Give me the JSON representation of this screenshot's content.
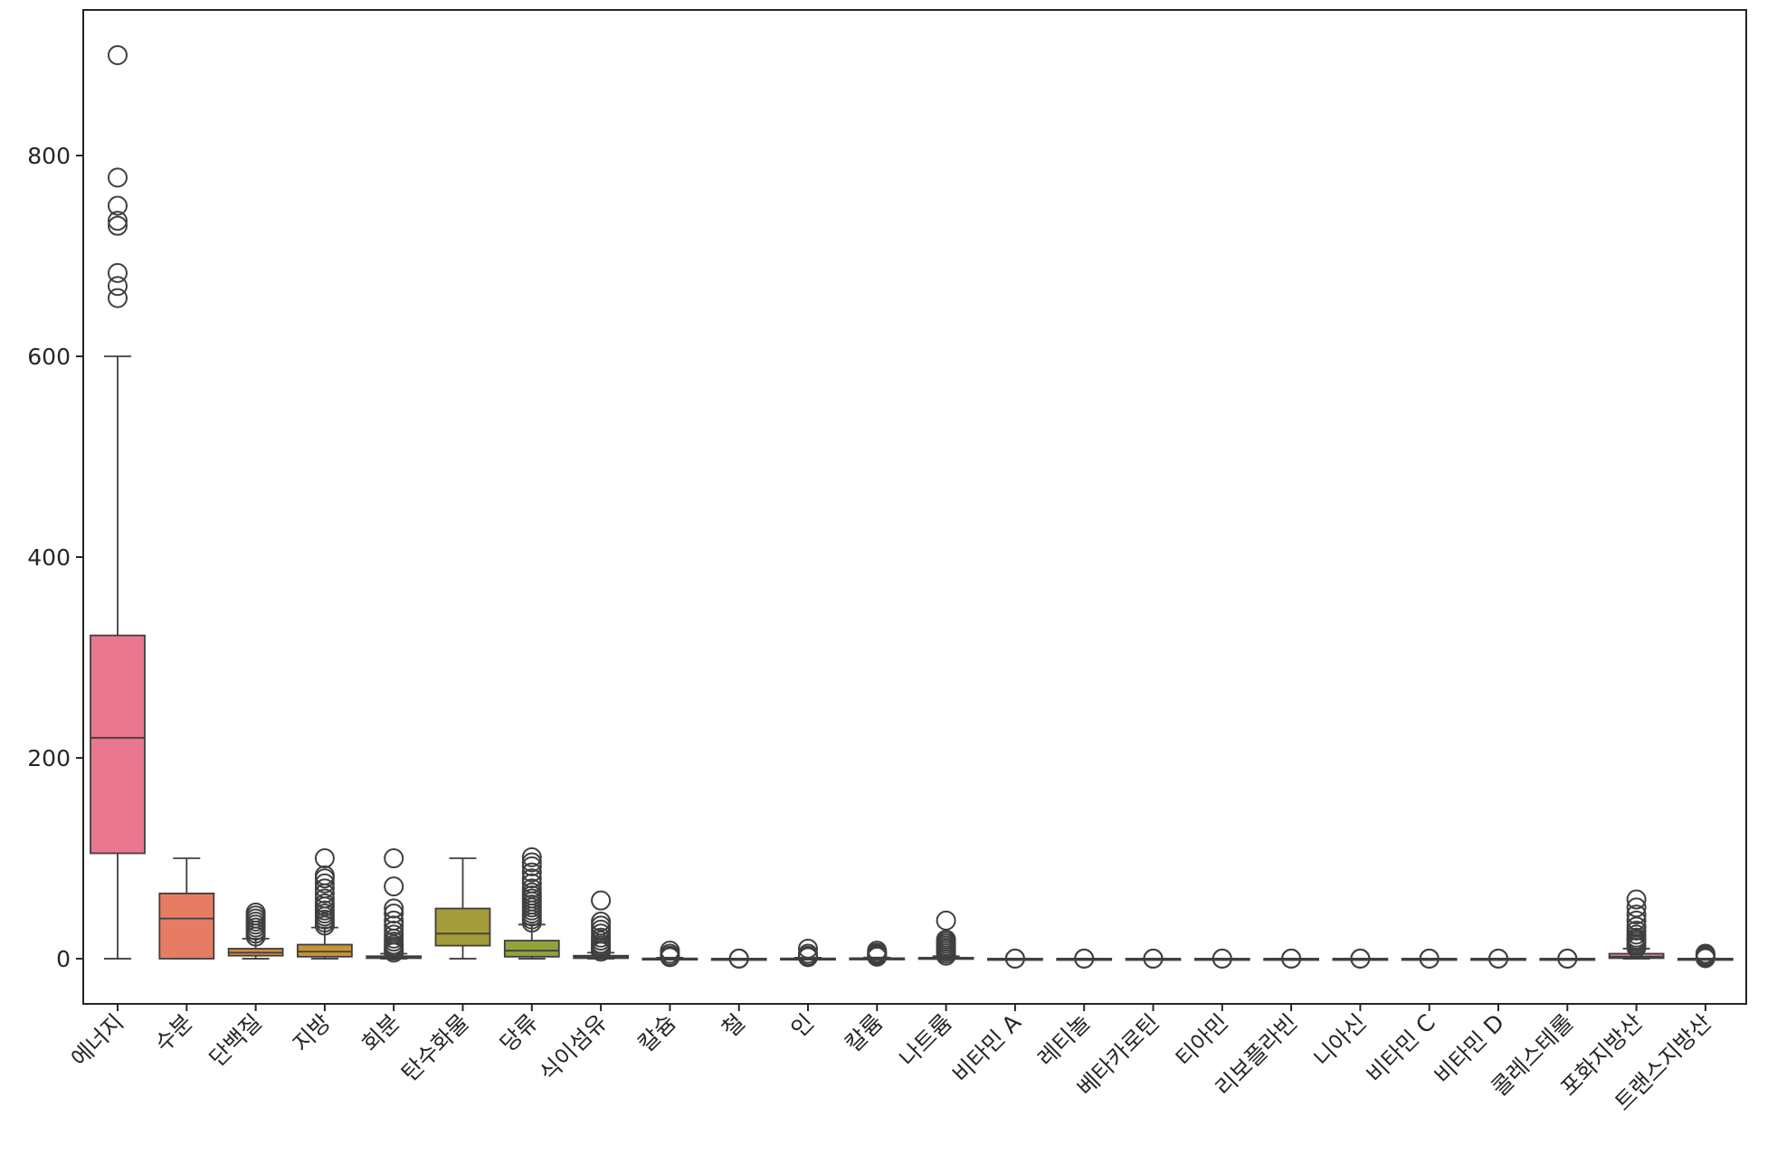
{
  "chart_data": {
    "type": "boxplot",
    "title": "",
    "xlabel": "",
    "ylabel": "",
    "ylim": [
      -45,
      945
    ],
    "yticks": [
      0,
      200,
      400,
      600,
      800
    ],
    "grid": false,
    "categories": [
      "에너지",
      "수분",
      "단백질",
      "지방",
      "회분",
      "탄수화물",
      "당류",
      "식이섬유",
      "칼슘",
      "철",
      "인",
      "칼륨",
      "나트륨",
      "비타민 A",
      "레티놀",
      "베타카로틴",
      "티아민",
      "리보플라빈",
      "니아신",
      "비타민 C",
      "비타민 D",
      "콜레스테롤",
      "포화지방산",
      "트랜스지방산"
    ],
    "series": [
      {
        "category": "에너지",
        "color": "#e8778f",
        "min": 0,
        "q1": 105,
        "median": 220,
        "q3": 322,
        "max": 600,
        "outliers": [
          900,
          778,
          750,
          735,
          730,
          683,
          670,
          658
        ]
      },
      {
        "category": "수분",
        "color": "#e77c64",
        "min": 0,
        "q1": 0,
        "median": 40,
        "q3": 65,
        "max": 100,
        "outliers": []
      },
      {
        "category": "단백질",
        "color": "#d4883e",
        "min": 0,
        "q1": 3,
        "median": 6,
        "q3": 10,
        "max": 20,
        "outliers": [
          22,
          25,
          28,
          31,
          34,
          37,
          40,
          43,
          46
        ]
      },
      {
        "category": "지방",
        "color": "#c99437",
        "min": 0,
        "q1": 2,
        "median": 7,
        "q3": 14,
        "max": 31,
        "outliers": [
          33,
          36,
          39,
          42,
          45,
          48,
          52,
          55,
          60,
          65,
          70,
          75,
          80,
          83,
          100
        ]
      },
      {
        "category": "회분",
        "color": "#b9993b",
        "min": 0,
        "q1": 0.5,
        "median": 1,
        "q3": 2.5,
        "max": 5,
        "outliers": [
          6,
          8,
          10,
          12,
          14,
          17,
          20,
          24,
          28,
          33,
          38,
          45,
          50,
          72,
          100
        ]
      },
      {
        "category": "탄수화물",
        "color": "#a49c3a",
        "min": 0,
        "q1": 13,
        "median": 25,
        "q3": 50,
        "max": 100,
        "outliers": []
      },
      {
        "category": "당류",
        "color": "#93a23a",
        "min": 0,
        "q1": 2,
        "median": 8,
        "q3": 18,
        "max": 34,
        "outliers": [
          36,
          39,
          42,
          45,
          48,
          51,
          54,
          57,
          60,
          63,
          66,
          70,
          75,
          80,
          86,
          92,
          96,
          101
        ]
      },
      {
        "category": "식이섬유",
        "color": "#6cad4b",
        "min": 0,
        "q1": 0.5,
        "median": 1.5,
        "q3": 3,
        "max": 6,
        "outliers": [
          7,
          9,
          11,
          13,
          15,
          18,
          21,
          25,
          29,
          33,
          37,
          58
        ]
      },
      {
        "category": "칼슘",
        "color": "#4db46b",
        "min": 0,
        "q1": 0,
        "median": 0.1,
        "q3": 0.3,
        "max": 1,
        "outliers": [
          1.5,
          2,
          3,
          5,
          8
        ]
      },
      {
        "category": "철",
        "color": "#45b287",
        "min": 0,
        "q1": 0,
        "median": 0,
        "q3": 0.01,
        "max": 0.03,
        "outliers": [
          0.05,
          0.1,
          0.2
        ]
      },
      {
        "category": "인",
        "color": "#46b09a",
        "min": 0,
        "q1": 0,
        "median": 0.1,
        "q3": 0.3,
        "max": 1,
        "outliers": [
          1.5,
          2,
          3,
          5,
          10
        ]
      },
      {
        "category": "칼륨",
        "color": "#47aeaa",
        "min": 0,
        "q1": 0,
        "median": 0.2,
        "q3": 0.5,
        "max": 1.2,
        "outliers": [
          2,
          3,
          4,
          5,
          6,
          8
        ]
      },
      {
        "category": "나트륨",
        "color": "#48adba",
        "min": 0,
        "q1": 0,
        "median": 0.5,
        "q3": 1,
        "max": 2.5,
        "outliers": [
          3,
          5,
          7,
          9,
          11,
          13,
          15,
          17,
          19,
          38
        ]
      },
      {
        "category": "비타민 A",
        "color": "#4aabcb",
        "min": 0,
        "q1": 0,
        "median": 0,
        "q3": 0.01,
        "max": 0.02,
        "outliers": [
          0.05,
          0.1
        ]
      },
      {
        "category": "레티놀",
        "color": "#4aa7dd",
        "min": 0,
        "q1": 0,
        "median": 0,
        "q3": 0.01,
        "max": 0.02,
        "outliers": [
          0.05,
          0.1
        ]
      },
      {
        "category": "베타카로틴",
        "color": "#63a0ea",
        "min": 0,
        "q1": 0,
        "median": 0,
        "q3": 0.01,
        "max": 0.02,
        "outliers": [
          0.05,
          0.1
        ]
      },
      {
        "category": "티아민",
        "color": "#8998ea",
        "min": 0,
        "q1": 0,
        "median": 0,
        "q3": 0.01,
        "max": 0.02,
        "outliers": [
          0.05,
          0.1
        ]
      },
      {
        "category": "리보플라빈",
        "color": "#a58fe9",
        "min": 0,
        "q1": 0,
        "median": 0,
        "q3": 0.01,
        "max": 0.02,
        "outliers": [
          0.05,
          0.1
        ]
      },
      {
        "category": "니아신",
        "color": "#bd86e8",
        "min": 0,
        "q1": 0,
        "median": 0,
        "q3": 0.01,
        "max": 0.02,
        "outliers": [
          0.05,
          0.1
        ]
      },
      {
        "category": "비타민 C",
        "color": "#d07ce6",
        "min": 0,
        "q1": 0,
        "median": 0,
        "q3": 0.01,
        "max": 0.02,
        "outliers": [
          0.05,
          0.1
        ]
      },
      {
        "category": "비타민 D",
        "color": "#e077dd",
        "min": 0,
        "q1": 0,
        "median": 0,
        "q3": 0.01,
        "max": 0.02,
        "outliers": [
          0.05,
          0.1
        ]
      },
      {
        "category": "콜레스테롤",
        "color": "#e575c8",
        "min": 0,
        "q1": 0,
        "median": 0,
        "q3": 0.01,
        "max": 0.02,
        "outliers": [
          0.05,
          0.1
        ]
      },
      {
        "category": "포화지방산",
        "color": "#e775b3",
        "min": 0,
        "q1": 0.5,
        "median": 2,
        "q3": 5,
        "max": 10,
        "outliers": [
          11,
          13,
          15,
          17,
          19,
          21,
          24,
          28,
          32,
          38,
          44,
          51,
          59
        ]
      },
      {
        "category": "트랜스지방산",
        "color": "#e877a2",
        "min": 0,
        "q1": 0,
        "median": 0,
        "q3": 0.05,
        "max": 0.1,
        "outliers": [
          0.5,
          1,
          2,
          3,
          4,
          5
        ]
      }
    ]
  }
}
